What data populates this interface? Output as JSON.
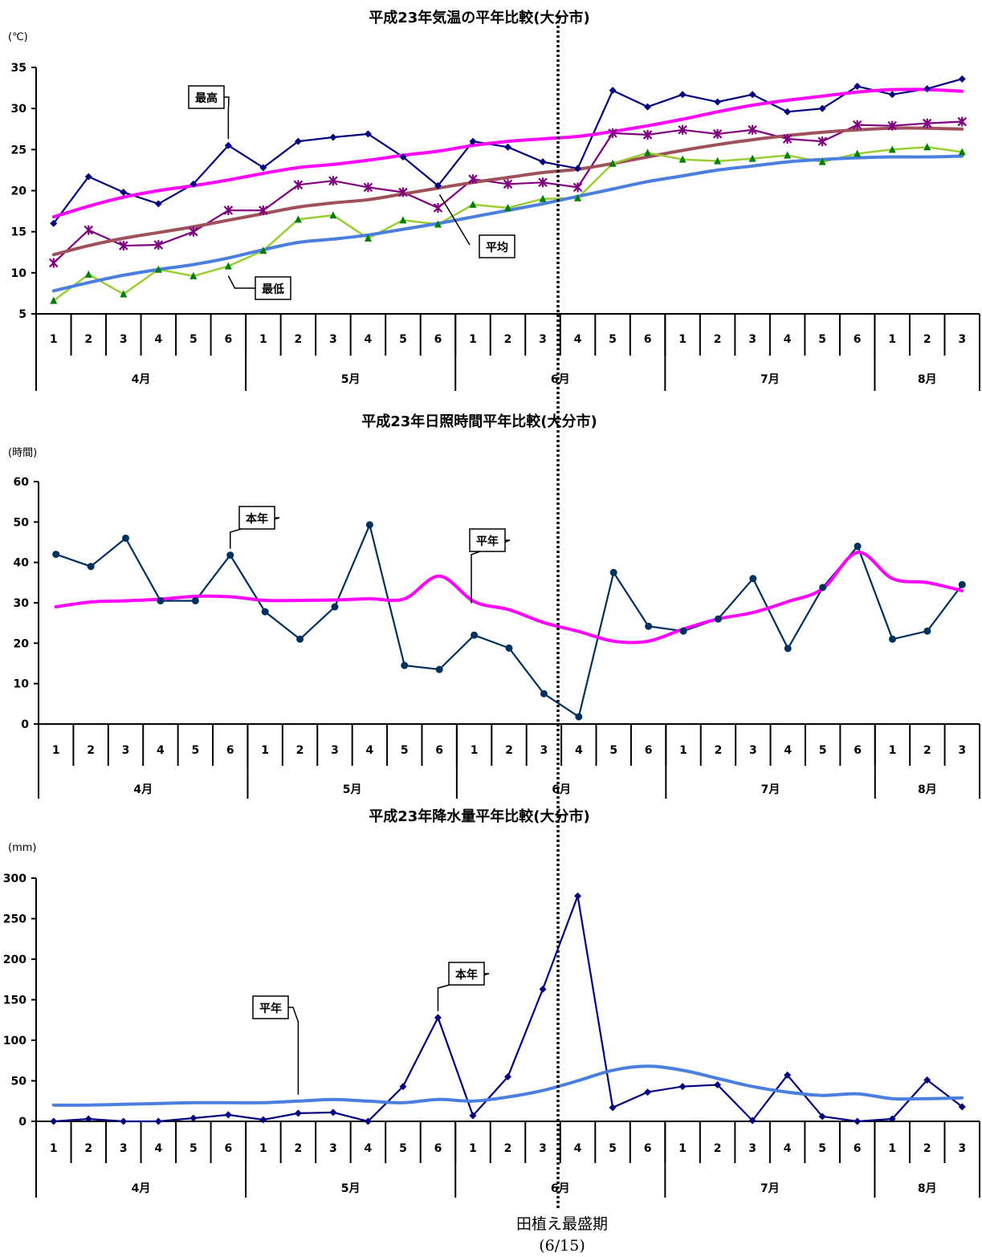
{
  "footer": {
    "label": "田植え最盛期",
    "date": "(6/15)"
  },
  "chart_data": [
    {
      "type": "line",
      "title": "平成23年気温の平年比較(大分市)",
      "ylabel": "(℃)",
      "ylim": [
        5,
        35
      ],
      "yticks": [
        5,
        10,
        15,
        20,
        25,
        30,
        35
      ],
      "categories": [
        "1",
        "2",
        "3",
        "4",
        "5",
        "6",
        "1",
        "2",
        "3",
        "4",
        "5",
        "6",
        "1",
        "2",
        "3",
        "4",
        "5",
        "6",
        "1",
        "2",
        "3",
        "4",
        "5",
        "6",
        "1",
        "2",
        "3"
      ],
      "months": [
        {
          "label": "4月",
          "span": [
            0,
            5
          ]
        },
        {
          "label": "5月",
          "span": [
            6,
            11
          ]
        },
        {
          "label": "6月",
          "span": [
            12,
            17
          ]
        },
        {
          "label": "7月",
          "span": [
            18,
            23
          ]
        },
        {
          "label": "8月",
          "span": [
            24,
            26
          ]
        }
      ],
      "series": [
        {
          "name": "最高",
          "kind": "this_year",
          "color": "#000080",
          "marker": "diamond",
          "values": [
            16.0,
            21.7,
            19.8,
            18.4,
            20.8,
            25.5,
            22.8,
            26.0,
            26.5,
            26.9,
            24.1,
            20.6,
            26.0,
            25.3,
            23.5,
            22.7,
            32.2,
            30.2,
            31.7,
            30.8,
            31.7,
            29.6,
            30.0,
            32.7,
            31.7,
            32.4,
            33.6
          ]
        },
        {
          "name": "",
          "kind": "normal",
          "color": "#ff00ff",
          "marker": "none",
          "values": [
            16.8,
            18.1,
            19.2,
            20.0,
            20.6,
            21.3,
            22.1,
            22.8,
            23.2,
            23.7,
            24.3,
            24.8,
            25.5,
            26.0,
            26.3,
            26.6,
            27.2,
            27.9,
            28.7,
            29.6,
            30.4,
            31.0,
            31.5,
            32.0,
            32.3,
            32.3,
            32.1
          ]
        },
        {
          "name": "平均",
          "kind": "this_year",
          "color": "#800080",
          "marker": "asterisk",
          "values": [
            11.2,
            15.2,
            13.3,
            13.4,
            15.0,
            17.6,
            17.6,
            20.7,
            21.2,
            20.4,
            19.8,
            17.9,
            21.4,
            20.8,
            21.0,
            20.4,
            27.0,
            26.8,
            27.4,
            26.9,
            27.4,
            26.3,
            26.0,
            28.0,
            27.9,
            28.2,
            28.4
          ]
        },
        {
          "name": "",
          "kind": "normal",
          "color": "#a0505a",
          "marker": "none",
          "values": [
            12.2,
            13.3,
            14.2,
            14.9,
            15.6,
            16.4,
            17.2,
            18.0,
            18.5,
            18.9,
            19.6,
            20.3,
            21.0,
            21.6,
            22.2,
            22.6,
            23.3,
            24.1,
            24.9,
            25.6,
            26.2,
            26.7,
            27.1,
            27.4,
            27.6,
            27.6,
            27.5
          ]
        },
        {
          "name": "最低",
          "kind": "this_year",
          "color": "#9acd32",
          "marker": "triangle",
          "marker_color": "#008000",
          "values": [
            6.6,
            9.8,
            7.4,
            10.4,
            9.6,
            10.8,
            12.7,
            16.5,
            17.0,
            14.2,
            16.4,
            15.9,
            18.3,
            17.9,
            19.0,
            19.1,
            23.3,
            24.6,
            23.8,
            23.6,
            23.9,
            24.3,
            23.5,
            24.5,
            25.0,
            25.3,
            24.7
          ]
        },
        {
          "name": "",
          "kind": "normal",
          "color": "#4a7fe0",
          "marker": "none",
          "values": [
            7.8,
            8.8,
            9.7,
            10.4,
            11.0,
            11.8,
            12.8,
            13.7,
            14.1,
            14.6,
            15.3,
            16.0,
            16.8,
            17.6,
            18.4,
            19.3,
            20.2,
            21.1,
            21.8,
            22.5,
            23.0,
            23.5,
            23.8,
            24.0,
            24.1,
            24.1,
            24.2
          ]
        }
      ]
    },
    {
      "type": "line",
      "title": "平成23年日照時間平年比較(大分市)",
      "ylabel": "(時間)",
      "ylim": [
        0,
        60
      ],
      "yticks": [
        0,
        10,
        20,
        30,
        40,
        50,
        60
      ],
      "categories": [
        "1",
        "2",
        "3",
        "4",
        "5",
        "6",
        "1",
        "2",
        "3",
        "4",
        "5",
        "6",
        "1",
        "2",
        "3",
        "4",
        "5",
        "6",
        "1",
        "2",
        "3",
        "4",
        "5",
        "6",
        "1",
        "2",
        "3"
      ],
      "months": [
        {
          "label": "4月",
          "span": [
            0,
            5
          ]
        },
        {
          "label": "5月",
          "span": [
            6,
            11
          ]
        },
        {
          "label": "6月",
          "span": [
            12,
            17
          ]
        },
        {
          "label": "7月",
          "span": [
            18,
            23
          ]
        },
        {
          "label": "8月",
          "span": [
            24,
            26
          ]
        }
      ],
      "series": [
        {
          "name": "本年",
          "kind": "this_year",
          "color": "#003060",
          "marker": "circle",
          "values": [
            42.0,
            39.0,
            46.0,
            30.5,
            30.5,
            41.8,
            27.8,
            21.0,
            29.0,
            49.3,
            14.5,
            13.5,
            22.0,
            18.8,
            7.5,
            1.8,
            37.5,
            24.2,
            23.0,
            26.0,
            36.0,
            18.7,
            33.8,
            44.0,
            21.0,
            23.0,
            34.5
          ]
        },
        {
          "name": "平年",
          "kind": "normal",
          "color": "#ff00ff",
          "marker": "none",
          "values": [
            29.0,
            30.2,
            30.5,
            30.9,
            31.6,
            31.5,
            30.6,
            30.6,
            30.7,
            31.0,
            31.0,
            36.6,
            30.3,
            28.3,
            25.1,
            22.9,
            20.5,
            20.5,
            23.5,
            26.0,
            27.6,
            30.3,
            33.5,
            42.5,
            36.0,
            35.0,
            33.0
          ]
        }
      ]
    },
    {
      "type": "line",
      "title": "平成23年降水量平年比較(大分市)",
      "ylabel": "(mm)",
      "ylim": [
        0,
        300
      ],
      "yticks": [
        0,
        50,
        100,
        150,
        200,
        250,
        300
      ],
      "categories": [
        "1",
        "2",
        "3",
        "4",
        "5",
        "6",
        "1",
        "2",
        "3",
        "4",
        "5",
        "6",
        "1",
        "2",
        "3",
        "4",
        "5",
        "6",
        "1",
        "2",
        "3",
        "4",
        "5",
        "6",
        "1",
        "2",
        "3"
      ],
      "months": [
        {
          "label": "4月",
          "span": [
            0,
            5
          ]
        },
        {
          "label": "5月",
          "span": [
            6,
            11
          ]
        },
        {
          "label": "6月",
          "span": [
            12,
            17
          ]
        },
        {
          "label": "7月",
          "span": [
            18,
            23
          ]
        },
        {
          "label": "8月",
          "span": [
            24,
            26
          ]
        }
      ],
      "series": [
        {
          "name": "本年",
          "kind": "this_year",
          "color": "#000080",
          "marker": "diamond",
          "values": [
            0,
            3,
            0,
            0,
            4,
            8,
            2,
            10,
            11,
            0,
            43,
            128,
            7,
            55,
            163,
            278,
            17,
            36,
            43,
            45,
            1,
            57,
            6,
            0,
            3,
            51,
            18
          ]
        },
        {
          "name": "平年",
          "kind": "normal",
          "color": "#4a7fe0",
          "marker": "none",
          "values": [
            20,
            20,
            21,
            22,
            23,
            23,
            23,
            25,
            27,
            25,
            23,
            27,
            25,
            30,
            38,
            50,
            63,
            68,
            63,
            53,
            43,
            36,
            32,
            34,
            28,
            28,
            29
          ]
        }
      ]
    }
  ],
  "callouts": [
    {
      "label": "最高",
      "chart": 0,
      "series": 0,
      "at": 5
    },
    {
      "label": "平均",
      "chart": 0,
      "series": 3,
      "at": 11
    },
    {
      "label": "最低",
      "chart": 0,
      "series": 4,
      "at": 5
    },
    {
      "label": "本年",
      "chart": 1,
      "series": 0,
      "at": 5
    },
    {
      "label": "平年",
      "chart": 1,
      "series": 1,
      "at": 13
    },
    {
      "label": "本年",
      "chart": 2,
      "series": 0,
      "at": 11
    },
    {
      "label": "平年",
      "chart": 2,
      "series": 1,
      "at": 7
    }
  ],
  "marker_line": {
    "label": "6/15",
    "after_index": 14
  }
}
